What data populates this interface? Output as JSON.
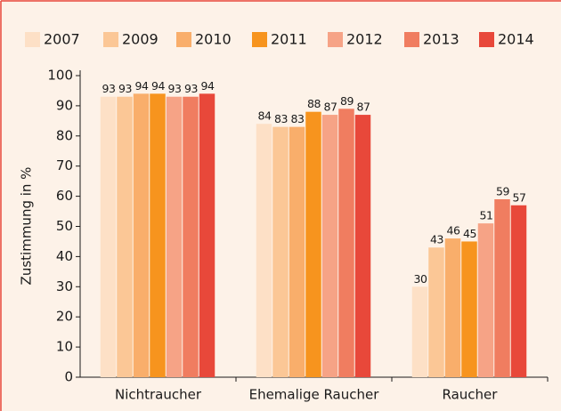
{
  "chart_data": {
    "type": "bar",
    "y_label": "Zustimmung in %",
    "categories": [
      "Nichtraucher",
      "Ehemalige Raucher",
      "Raucher"
    ],
    "series": [
      {
        "name": "2007",
        "color": "#fde0c6",
        "values": [
          93,
          84,
          30
        ]
      },
      {
        "name": "2009",
        "color": "#fbc796",
        "values": [
          93,
          83,
          43
        ]
      },
      {
        "name": "2010",
        "color": "#f9ae6b",
        "values": [
          94,
          83,
          46
        ]
      },
      {
        "name": "2011",
        "color": "#f7941e",
        "values": [
          94,
          88,
          45
        ]
      },
      {
        "name": "2012",
        "color": "#f6a386",
        "values": [
          93,
          87,
          51
        ]
      },
      {
        "name": "2013",
        "color": "#f07d60",
        "values": [
          93,
          89,
          59
        ]
      },
      {
        "name": "2014",
        "color": "#e8483a",
        "values": [
          94,
          87,
          57
        ]
      }
    ],
    "ylim": [
      0,
      100
    ],
    "yticks": [
      0,
      10,
      20,
      30,
      40,
      50,
      60,
      70,
      80,
      90,
      100
    ],
    "legend": "top",
    "value_labels_shown": true
  }
}
